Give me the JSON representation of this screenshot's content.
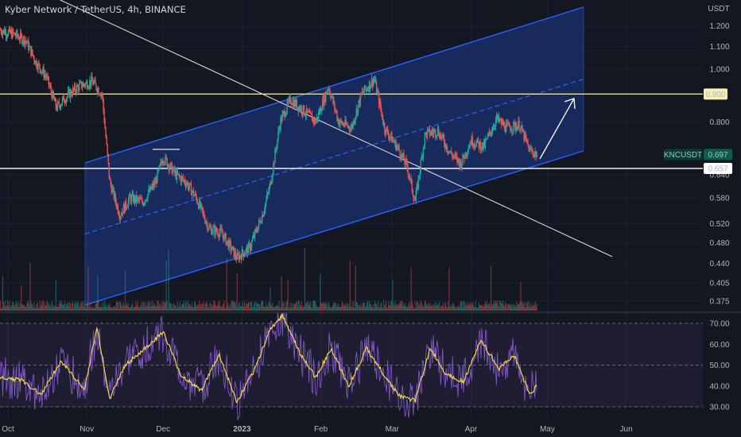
{
  "header": {
    "title": "Kyber Network / TetherUS, 4h, BINANCE"
  },
  "colors": {
    "background": "#131722",
    "candle_up": "#26a69a",
    "candle_down": "#ef5350",
    "channel_fill": "#1e3a8a",
    "channel_line": "#2962ff",
    "horizontal_line": "#f5f0b3",
    "rsi_line": "#7e57c2",
    "rsi_ma_line": "#f2d64b"
  },
  "chart_data": [
    {
      "type": "candlestick",
      "title": "Kyber Network / TetherUS, 4h, BINANCE",
      "y_unit": "USDT",
      "y_scale": "log",
      "y_ticks": [
        "1.200",
        "1.100",
        "1.000",
        "0.800",
        "0.640",
        "0.580",
        "0.520",
        "0.480",
        "0.440",
        "0.405",
        "0.375"
      ],
      "x_ticks": [
        "Oct",
        "Nov",
        "Dec",
        "2023",
        "Feb",
        "Mar",
        "Apr",
        "May",
        "Jun"
      ],
      "ylim": [
        0.36,
        1.29
      ],
      "price_label": {
        "name": "KNCUSDT",
        "value": "0.697"
      },
      "horizontal_levels": [
        "0.900",
        "0.657"
      ],
      "price_path": [
        {
          "x": "Sep 28",
          "y": 1.18
        },
        {
          "x": "Oct 3",
          "y": 1.16
        },
        {
          "x": "Oct 8",
          "y": 1.13
        },
        {
          "x": "Oct 12",
          "y": 1.03
        },
        {
          "x": "Oct 16",
          "y": 0.97
        },
        {
          "x": "Oct 20",
          "y": 0.85
        },
        {
          "x": "Oct 25",
          "y": 0.9
        },
        {
          "x": "Oct 29",
          "y": 0.93
        },
        {
          "x": "Nov 3",
          "y": 0.95
        },
        {
          "x": "Nov 7",
          "y": 0.9
        },
        {
          "x": "Nov 10",
          "y": 0.62
        },
        {
          "x": "Nov 14",
          "y": 0.54
        },
        {
          "x": "Nov 18",
          "y": 0.58
        },
        {
          "x": "Nov 23",
          "y": 0.57
        },
        {
          "x": "Nov 28",
          "y": 0.62
        },
        {
          "x": "Dec 1",
          "y": 0.69
        },
        {
          "x": "Dec 6",
          "y": 0.64
        },
        {
          "x": "Dec 10",
          "y": 0.62
        },
        {
          "x": "Dec 14",
          "y": 0.58
        },
        {
          "x": "Dec 19",
          "y": 0.51
        },
        {
          "x": "Dec 24",
          "y": 0.5
        },
        {
          "x": "Dec 30",
          "y": 0.45
        },
        {
          "x": "Jan 4",
          "y": 0.47
        },
        {
          "x": "Jan 9",
          "y": 0.54
        },
        {
          "x": "Jan 12",
          "y": 0.61
        },
        {
          "x": "Jan 16",
          "y": 0.8
        },
        {
          "x": "Jan 20",
          "y": 0.88
        },
        {
          "x": "Jan 25",
          "y": 0.84
        },
        {
          "x": "Jan 30",
          "y": 0.8
        },
        {
          "x": "Feb 4",
          "y": 0.93
        },
        {
          "x": "Feb 8",
          "y": 0.8
        },
        {
          "x": "Feb 13",
          "y": 0.78
        },
        {
          "x": "Feb 17",
          "y": 0.9
        },
        {
          "x": "Feb 22",
          "y": 0.96
        },
        {
          "x": "Feb 26",
          "y": 0.78
        },
        {
          "x": "Mar 3",
          "y": 0.72
        },
        {
          "x": "Mar 7",
          "y": 0.66
        },
        {
          "x": "Mar 10",
          "y": 0.57
        },
        {
          "x": "Mar 14",
          "y": 0.76
        },
        {
          "x": "Mar 19",
          "y": 0.77
        },
        {
          "x": "Mar 24",
          "y": 0.7
        },
        {
          "x": "Mar 28",
          "y": 0.67
        },
        {
          "x": "Apr 1",
          "y": 0.74
        },
        {
          "x": "Apr 6",
          "y": 0.72
        },
        {
          "x": "Apr 11",
          "y": 0.81
        },
        {
          "x": "Apr 15",
          "y": 0.78
        },
        {
          "x": "Apr 20",
          "y": 0.79
        },
        {
          "x": "Apr 24",
          "y": 0.71
        },
        {
          "x": "Apr 27",
          "y": 0.697
        }
      ]
    },
    {
      "type": "line",
      "name": "RSI",
      "y_ticks": [
        "70.00",
        "60.00",
        "50.00",
        "40.00",
        "30.00"
      ],
      "ylim": [
        27,
        75
      ],
      "bands": [
        70,
        50,
        30
      ],
      "rsi_ma_path": [
        {
          "x": "Sep 28",
          "y": 44
        },
        {
          "x": "Oct 6",
          "y": 43
        },
        {
          "x": "Oct 14",
          "y": 36
        },
        {
          "x": "Oct 22",
          "y": 52
        },
        {
          "x": "Oct 31",
          "y": 38
        },
        {
          "x": "Nov 5",
          "y": 68
        },
        {
          "x": "Nov 10",
          "y": 34
        },
        {
          "x": "Nov 16",
          "y": 50
        },
        {
          "x": "Nov 24",
          "y": 58
        },
        {
          "x": "Dec 1",
          "y": 66
        },
        {
          "x": "Dec 8",
          "y": 45
        },
        {
          "x": "Dec 16",
          "y": 38
        },
        {
          "x": "Dec 23",
          "y": 55
        },
        {
          "x": "Dec 30",
          "y": 32
        },
        {
          "x": "Jan 6",
          "y": 48
        },
        {
          "x": "Jan 12",
          "y": 67
        },
        {
          "x": "Jan 17",
          "y": 74
        },
        {
          "x": "Jan 24",
          "y": 55
        },
        {
          "x": "Jan 30",
          "y": 44
        },
        {
          "x": "Feb 5",
          "y": 58
        },
        {
          "x": "Feb 12",
          "y": 40
        },
        {
          "x": "Feb 19",
          "y": 58
        },
        {
          "x": "Feb 26",
          "y": 45
        },
        {
          "x": "Mar 4",
          "y": 35
        },
        {
          "x": "Mar 10",
          "y": 33
        },
        {
          "x": "Mar 16",
          "y": 58
        },
        {
          "x": "Mar 22",
          "y": 46
        },
        {
          "x": "Mar 29",
          "y": 42
        },
        {
          "x": "Apr 5",
          "y": 62
        },
        {
          "x": "Apr 12",
          "y": 48
        },
        {
          "x": "Apr 18",
          "y": 55
        },
        {
          "x": "Apr 24",
          "y": 36
        },
        {
          "x": "Apr 27",
          "y": 40
        }
      ]
    }
  ]
}
